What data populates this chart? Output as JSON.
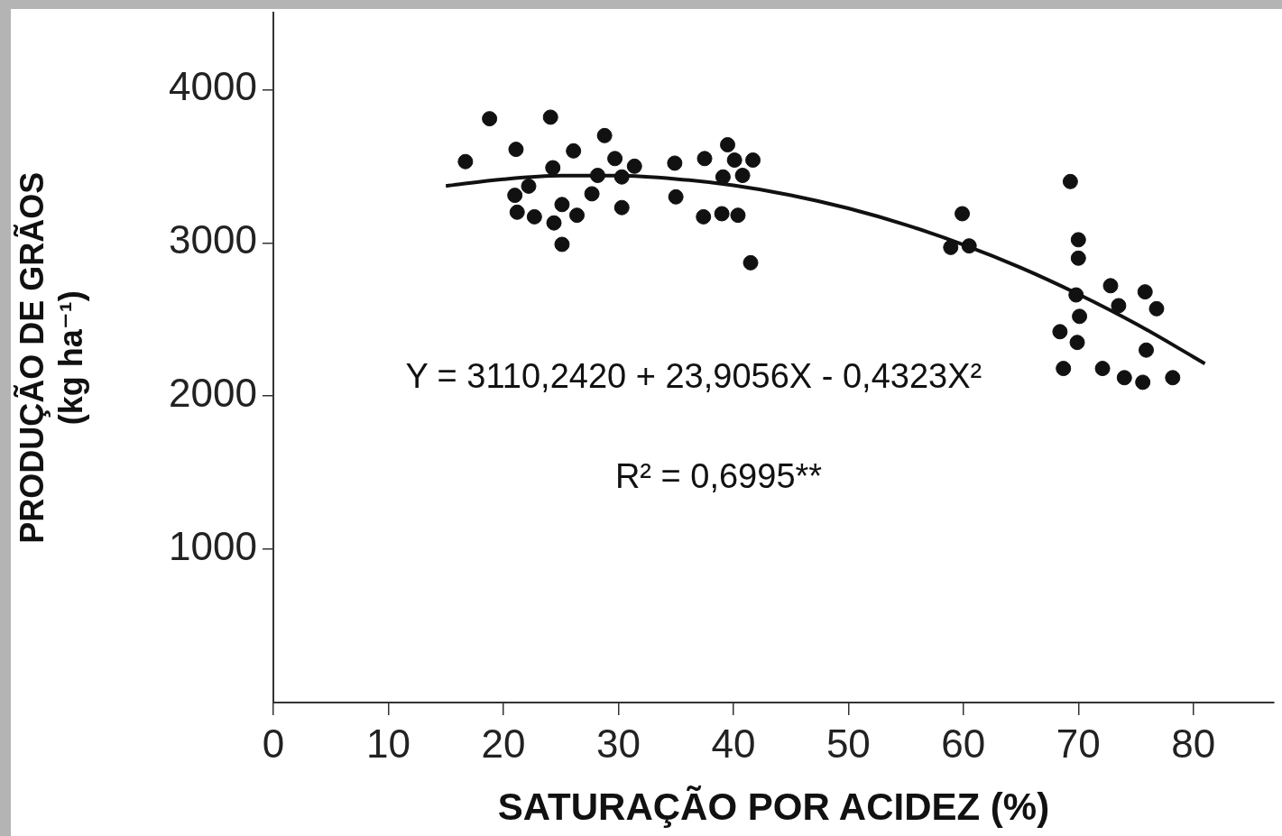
{
  "chart_data": {
    "type": "scatter",
    "xlabel": "SATURAÇÃO POR ACIDEZ (%)",
    "ylabel": "PRODUÇÃO DE GRÃOS\n(kg ha⁻¹)",
    "xlim": [
      0,
      87
    ],
    "xticks": [
      0,
      10,
      20,
      30,
      40,
      50,
      60,
      70,
      80
    ],
    "ylim": [
      0,
      4500
    ],
    "yticks": [
      1000,
      2000,
      3000,
      4000
    ],
    "marker": "circle",
    "annotations": [
      "Y = 3110,2420 + 23,9056X - 0,4323X²",
      "R² = 0,6995**"
    ],
    "series": [
      {
        "type": "scatter",
        "color": "#111111",
        "x": [
          18.8,
          24.1,
          16.7,
          21.1,
          26.1,
          28.8,
          39.5,
          29.7,
          31.4,
          34.9,
          37.5,
          40.1,
          41.7,
          24.3,
          28.2,
          30.3,
          39.1,
          40.8,
          22.2,
          21.0,
          27.7,
          35.0,
          25.1,
          21.2,
          22.7,
          24.4,
          26.4,
          30.3,
          37.4,
          39.0,
          40.4,
          25.1,
          41.5,
          69.3,
          59.9,
          58.9,
          60.5,
          70.0,
          70.0,
          72.8,
          75.8,
          69.8,
          73.5,
          76.8,
          70.1,
          68.4,
          69.9,
          75.9,
          68.7,
          72.1,
          74.0,
          75.6,
          78.2
        ],
        "values": [
          3810,
          3820,
          3530,
          3610,
          3600,
          3700,
          3640,
          3550,
          3500,
          3520,
          3550,
          3540,
          3540,
          3490,
          3440,
          3430,
          3430,
          3440,
          3370,
          3310,
          3320,
          3300,
          3250,
          3200,
          3170,
          3130,
          3180,
          3230,
          3170,
          3190,
          3180,
          2990,
          2870,
          3400,
          3190,
          2970,
          2980,
          3020,
          2900,
          2720,
          2680,
          2660,
          2590,
          2570,
          2520,
          2420,
          2350,
          2300,
          2180,
          2180,
          2120,
          2090,
          2120
        ]
      },
      {
        "type": "line",
        "color": "#111111",
        "marker": "none",
        "x": [
          15,
          20,
          25,
          30,
          35,
          40,
          45,
          50,
          55,
          60,
          65,
          70,
          75,
          80,
          81
        ],
        "values": [
          3371,
          3415,
          3438,
          3438,
          3417,
          3375,
          3311,
          3225,
          3117,
          2988,
          2838,
          2665,
          2472,
          2256,
          2212
        ]
      }
    ]
  }
}
